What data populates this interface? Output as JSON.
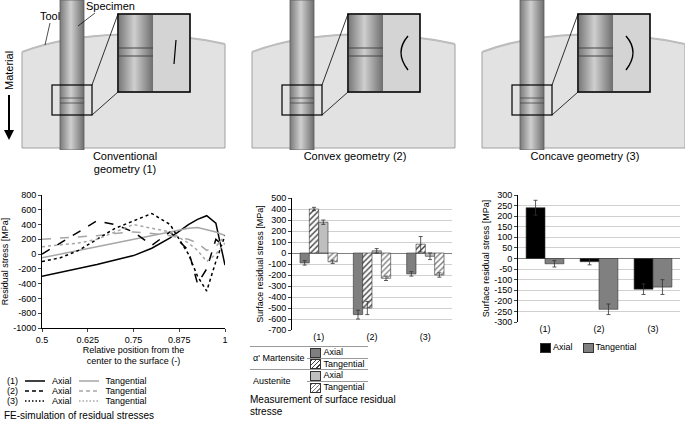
{
  "illustration": {
    "labels": {
      "tool": "Tool",
      "specimen": "Specimen",
      "material": "Material"
    },
    "panels": [
      "Conventional geometry (1)",
      "Convex geometry (2)",
      "Concave geometry (3)"
    ]
  },
  "chart_data": [
    {
      "type": "line",
      "xlabel": "Relative position from the center to the surface (-)",
      "ylabel": "Residual stress [MPa]",
      "caption": "FE-simulation of residual stresses",
      "x": [
        0.5,
        0.55,
        0.6,
        0.65,
        0.7,
        0.75,
        0.8,
        0.85,
        0.9,
        0.925,
        0.95,
        0.975,
        1
      ],
      "xlim": [
        0.5,
        1
      ],
      "xticks": [
        0.5,
        0.625,
        0.75,
        0.875,
        1
      ],
      "ylim": [
        -1000,
        800
      ],
      "yticks": [
        -1000,
        -800,
        -600,
        -400,
        -200,
        0,
        200,
        400,
        600,
        800
      ],
      "grid": false,
      "series": [
        {
          "group": "(1)",
          "name": "Axial",
          "color": "#000000",
          "line_style": "solid",
          "values": [
            -300,
            -250,
            -200,
            -140,
            -80,
            -20,
            80,
            220,
            400,
            470,
            520,
            420,
            -150
          ]
        },
        {
          "group": "(1)",
          "name": "Tangential",
          "color": "#a6a6a6",
          "line_style": "solid",
          "values": [
            -50,
            0,
            50,
            100,
            150,
            200,
            250,
            300,
            350,
            360,
            330,
            300,
            250
          ]
        },
        {
          "group": "(2)",
          "name": "Axial",
          "color": "#000000",
          "line_style": "dashed",
          "values": [
            0,
            150,
            300,
            450,
            400,
            300,
            120,
            300,
            50,
            -400,
            -200,
            200,
            100
          ]
        },
        {
          "group": "(2)",
          "name": "Tangential",
          "color": "#a6a6a6",
          "line_style": "dashed",
          "values": [
            200,
            220,
            230,
            250,
            280,
            300,
            280,
            250,
            200,
            150,
            50,
            100,
            250
          ]
        },
        {
          "group": "(3)",
          "name": "Axial",
          "color": "#000000",
          "line_style": "dotted",
          "values": [
            -100,
            -50,
            50,
            200,
            350,
            450,
            550,
            400,
            0,
            -300,
            -500,
            -100,
            250
          ]
        },
        {
          "group": "(3)",
          "name": "Tangential",
          "color": "#a6a6a6",
          "line_style": "dotted",
          "values": [
            100,
            120,
            150,
            200,
            300,
            400,
            350,
            300,
            150,
            50,
            -100,
            0,
            150
          ]
        }
      ]
    },
    {
      "type": "bar",
      "ylabel": "Surface residual stress [MPa]",
      "caption": "Measurement of surface residual stresse",
      "categories": [
        "(1)",
        "(2)",
        "(3)"
      ],
      "ylim": [
        -700,
        500
      ],
      "yticks": [
        -700,
        -600,
        -500,
        -400,
        -300,
        -200,
        -100,
        0,
        100,
        200,
        300,
        400,
        500
      ],
      "grid": true,
      "series": [
        {
          "group": "α' Martensite",
          "name": "Axial",
          "color": "#7f7f7f",
          "marker": "solid",
          "values": [
            -90,
            -560,
            -190
          ],
          "errors": [
            20,
            40,
            20
          ]
        },
        {
          "group": "α' Martensite",
          "name": "Tangential",
          "color": "#404040",
          "marker": "hatched",
          "values": [
            400,
            -500,
            80
          ],
          "errors": [
            15,
            60,
            70
          ]
        },
        {
          "group": "Austenite",
          "name": "Axial",
          "color": "#bfbfbf",
          "marker": "solid",
          "values": [
            280,
            20,
            -30
          ],
          "errors": [
            20,
            20,
            30
          ]
        },
        {
          "group": "Austenite",
          "name": "Tangential",
          "color": "#808080",
          "marker": "hatched",
          "values": [
            -80,
            -230,
            -200
          ],
          "errors": [
            15,
            20,
            20
          ]
        }
      ]
    },
    {
      "type": "bar",
      "ylabel": "Surface residual stress [MPa]",
      "categories": [
        "(1)",
        "(2)",
        "(3)"
      ],
      "ylim": [
        -300,
        300
      ],
      "yticks": [
        -300,
        -250,
        -200,
        -150,
        -100,
        -50,
        0,
        50,
        100,
        150,
        200,
        250,
        300
      ],
      "grid": true,
      "series": [
        {
          "name": "Axial",
          "color": "#000000",
          "values": [
            240,
            -15,
            -145
          ],
          "errors": [
            35,
            15,
            25
          ]
        },
        {
          "name": "Tangential",
          "color": "#808080",
          "values": [
            -25,
            -240,
            -135
          ],
          "errors": [
            15,
            25,
            35
          ]
        }
      ]
    }
  ]
}
